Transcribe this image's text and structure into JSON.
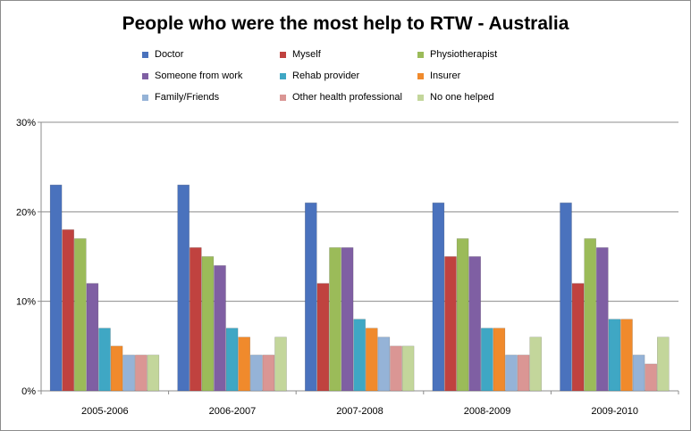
{
  "chart_data": {
    "type": "bar",
    "title": "People who were the most help to RTW - Australia",
    "categories": [
      "2005-2006",
      "2006-2007",
      "2007-2008",
      "2008-2009",
      "2009-2010"
    ],
    "ylim": [
      0,
      30
    ],
    "yticks": [
      "0%",
      "10%",
      "20%",
      "30%"
    ],
    "ytick_values": [
      0,
      10,
      20,
      30
    ],
    "grid": true,
    "legend_position": "top",
    "series": [
      {
        "name": "Doctor",
        "color": "#4a72bd",
        "values": [
          23,
          23,
          21,
          21,
          21
        ]
      },
      {
        "name": "Myself",
        "color": "#c0423f",
        "values": [
          18,
          16,
          12,
          15,
          12
        ]
      },
      {
        "name": "Physiotherapist",
        "color": "#9bbb59",
        "values": [
          17,
          15,
          16,
          17,
          17
        ]
      },
      {
        "name": "Someone from work",
        "color": "#7f5fa3",
        "values": [
          12,
          14,
          16,
          15,
          16
        ]
      },
      {
        "name": "Rehab provider",
        "color": "#3fa7c4",
        "values": [
          7,
          7,
          8,
          7,
          8
        ]
      },
      {
        "name": "Insurer",
        "color": "#f08a2c",
        "values": [
          5,
          6,
          7,
          7,
          8
        ]
      },
      {
        "name": "Family/Friends",
        "color": "#95b3d7",
        "values": [
          4,
          4,
          6,
          4,
          4
        ]
      },
      {
        "name": "Other health professional",
        "color": "#da9694",
        "values": [
          4,
          4,
          5,
          4,
          3
        ]
      },
      {
        "name": "No one helped",
        "color": "#c3d69b",
        "values": [
          4,
          6,
          5,
          6,
          6
        ]
      }
    ]
  }
}
